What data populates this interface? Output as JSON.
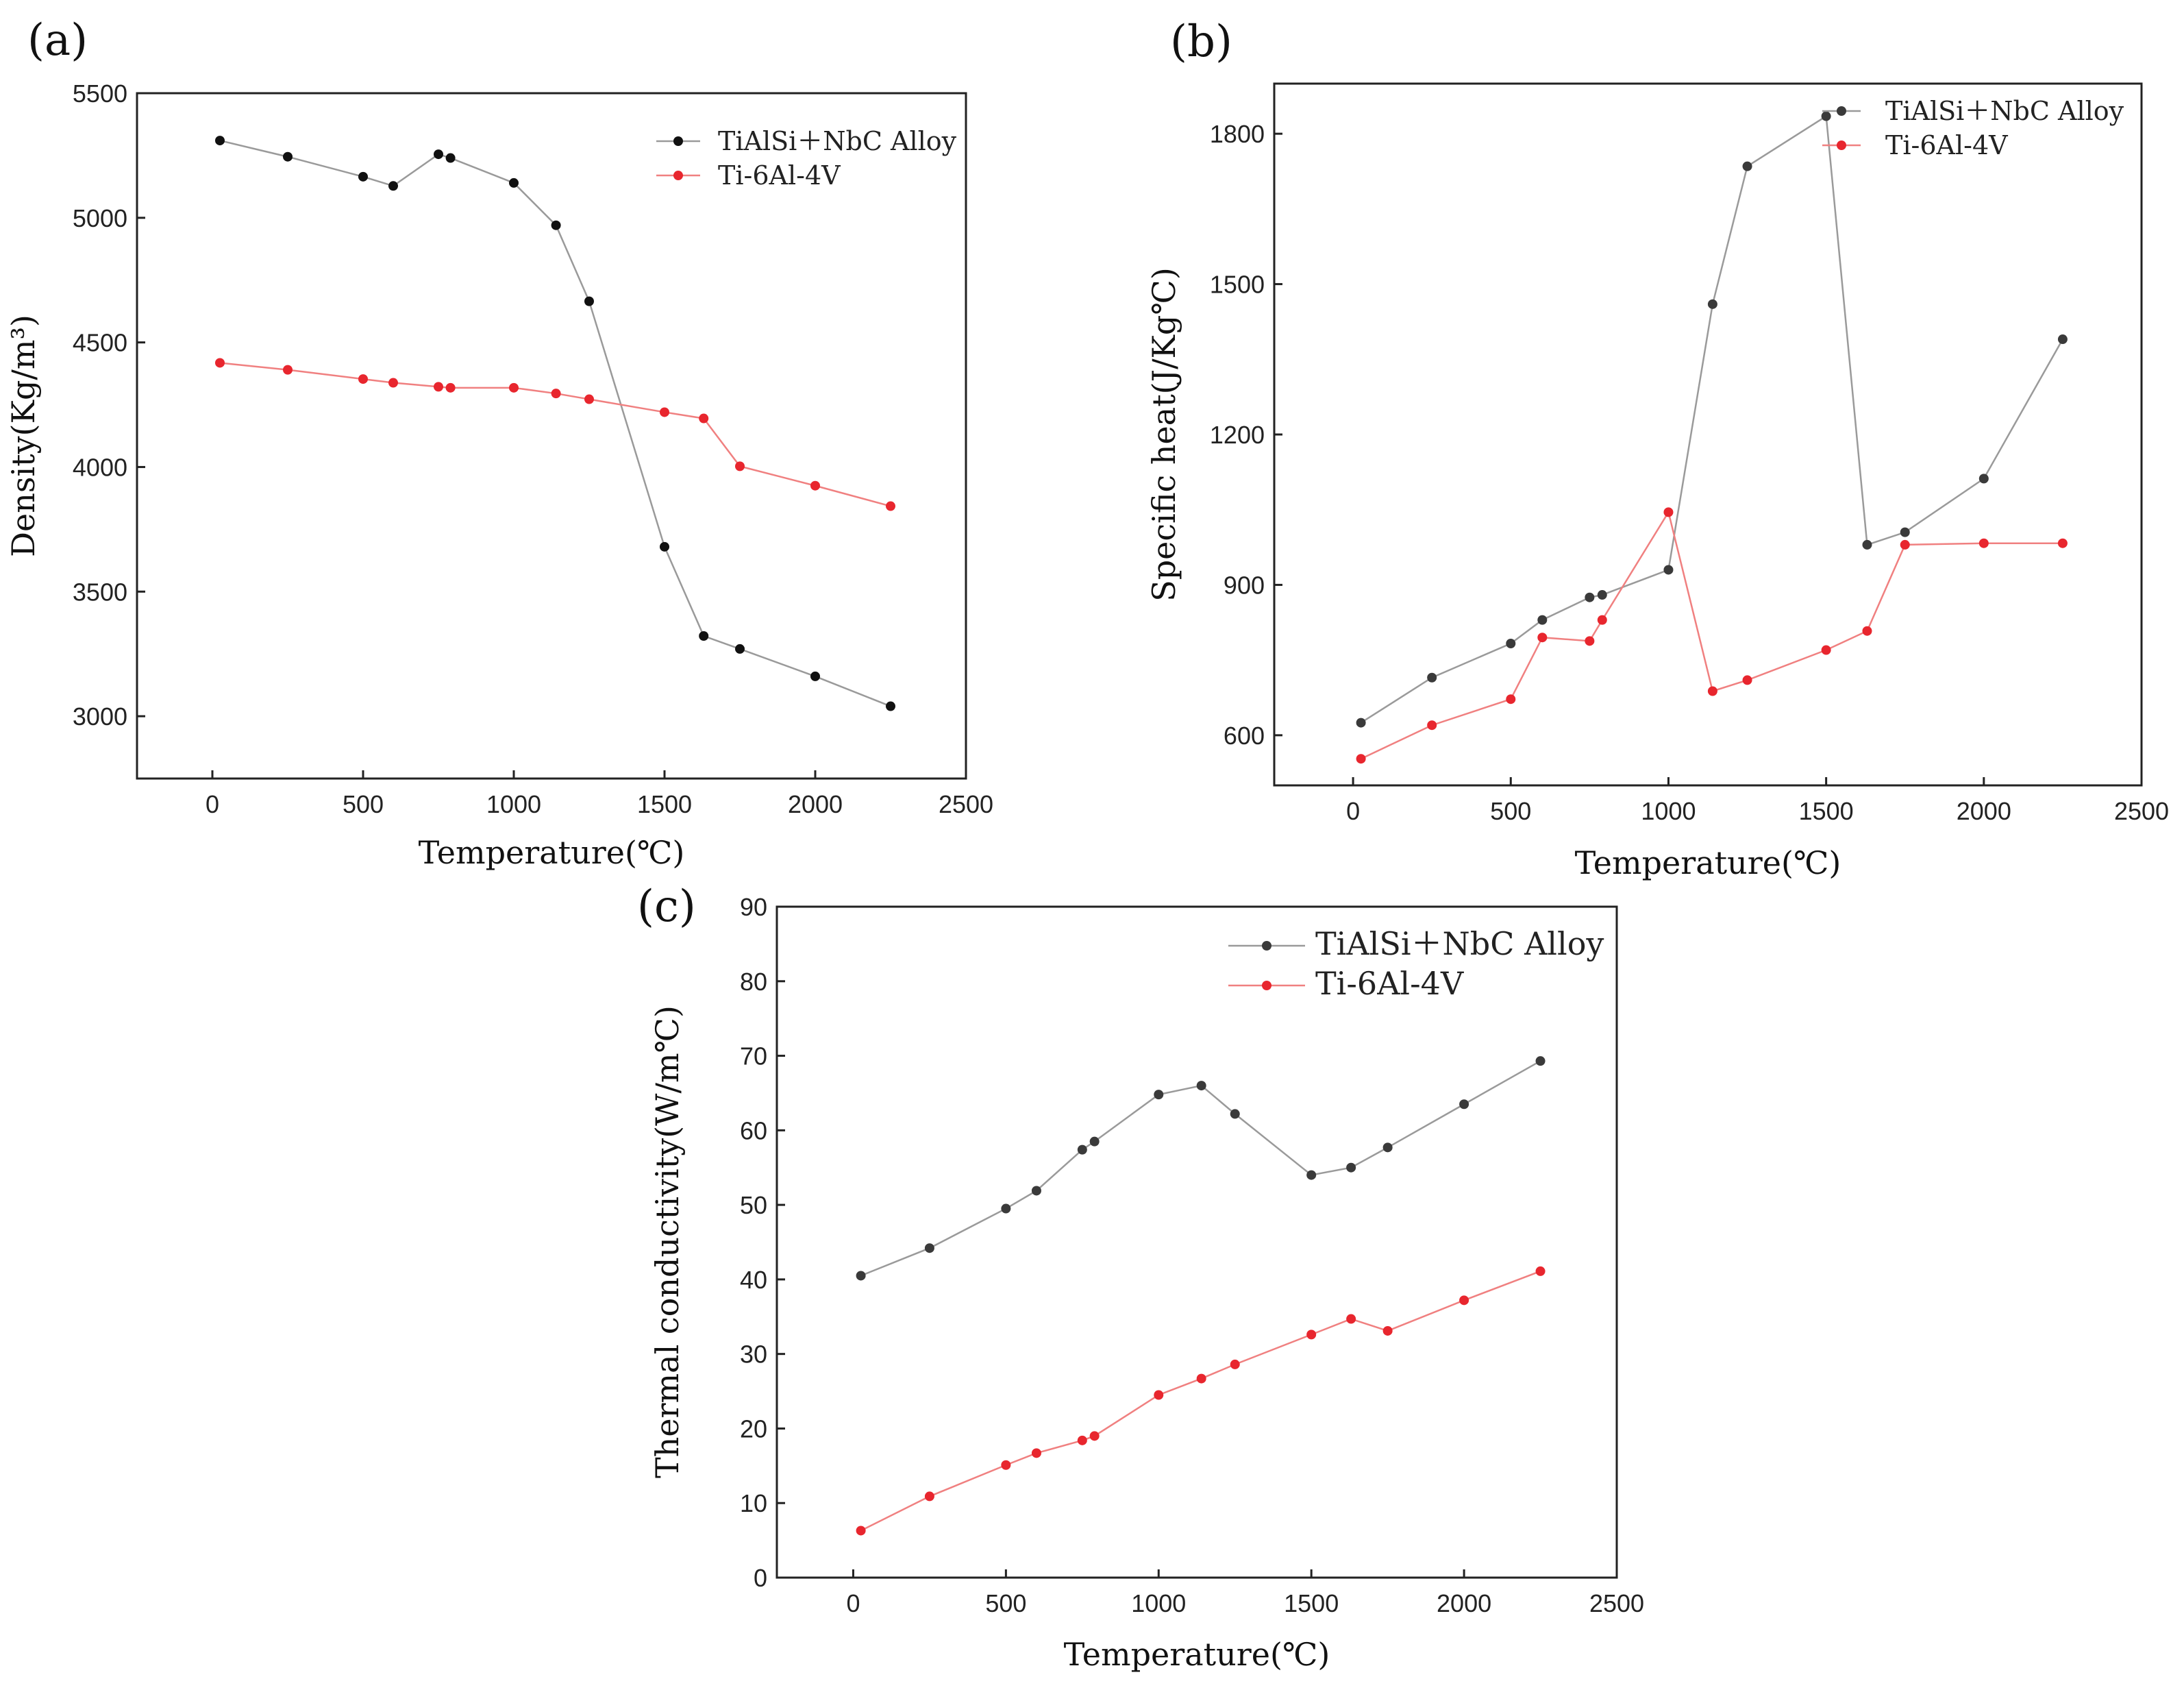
{
  "chart_data": [
    {
      "type": "line",
      "panel_label": "(a)",
      "xlabel": "Temperature(℃)",
      "ylabel": "Density(Kg/m³)",
      "xlim": [
        -250,
        2500
      ],
      "ylim": [
        2750,
        5500
      ],
      "xticks": [
        0,
        500,
        1000,
        1500,
        2000,
        2500
      ],
      "yticks": [
        3000,
        3500,
        4000,
        4500,
        5000,
        5500
      ],
      "xtick_labels": [
        "0",
        "500",
        "1000",
        "1500",
        "2000",
        "2500"
      ],
      "ytick_labels": [
        "3000",
        "3500",
        "4000",
        "4500",
        "5000",
        "5500"
      ],
      "legend_position": "top-right",
      "grid": false,
      "series": [
        {
          "name": "TiAlSi＋NbC Alloy",
          "color": "#111111",
          "line_color": "#9a9a9a",
          "x": [
            25,
            250,
            500,
            600,
            750,
            790,
            1000,
            1140,
            1250,
            1500,
            1630,
            1750,
            2000,
            2250
          ],
          "y": [
            5310,
            5245,
            5165,
            5128,
            5255,
            5240,
            5140,
            4970,
            4665,
            3680,
            3322,
            3270,
            3160,
            3040
          ]
        },
        {
          "name": "Ti-6Al-4V",
          "color": "#e8262e",
          "line_color": "#f08080",
          "x": [
            25,
            250,
            500,
            600,
            750,
            790,
            1000,
            1140,
            1250,
            1500,
            1630,
            1750,
            2000,
            2250
          ],
          "y": [
            4418,
            4390,
            4353,
            4338,
            4322,
            4318,
            4318,
            4295,
            4272,
            4220,
            4195,
            4003,
            3925,
            3843
          ]
        }
      ]
    },
    {
      "type": "line",
      "panel_label": "(b)",
      "xlabel": "Temperature(℃)",
      "ylabel": "Specific heat(J/Kg℃)",
      "xlim": [
        -250,
        2500
      ],
      "ylim": [
        500,
        1900
      ],
      "xticks": [
        0,
        500,
        1000,
        1500,
        2000,
        2500
      ],
      "yticks": [
        600,
        900,
        1200,
        1500,
        1800
      ],
      "xtick_labels": [
        "0",
        "500",
        "1000",
        "1500",
        "2000",
        "2500"
      ],
      "ytick_labels": [
        "600",
        "900",
        "1200",
        "1500",
        "1800"
      ],
      "legend_position": "top-right",
      "grid": false,
      "series": [
        {
          "name": "TiAlSi＋NbC Alloy",
          "color": "#3a3a3a",
          "line_color": "#9a9a9a",
          "x": [
            25,
            250,
            500,
            600,
            750,
            790,
            1000,
            1140,
            1250,
            1500,
            1630,
            1750,
            2000,
            2250
          ],
          "y": [
            625,
            715,
            783,
            830,
            875,
            880,
            930,
            1460,
            1735,
            1835,
            980,
            1005,
            1112,
            1390
          ]
        },
        {
          "name": "Ti-6Al-4V",
          "color": "#e8262e",
          "line_color": "#f08080",
          "x": [
            25,
            250,
            500,
            600,
            750,
            790,
            1000,
            1140,
            1250,
            1500,
            1630,
            1750,
            2000,
            2250
          ],
          "y": [
            553,
            620,
            672,
            795,
            788,
            830,
            1045,
            688,
            710,
            770,
            808,
            980,
            983,
            983
          ]
        }
      ]
    },
    {
      "type": "line",
      "panel_label": "(c)",
      "xlabel": "Temperature(℃)",
      "ylabel": "Thermal conductivity(W/m℃)",
      "xlim": [
        -250,
        2500
      ],
      "ylim": [
        0,
        90
      ],
      "xticks": [
        0,
        500,
        1000,
        1500,
        2000,
        2500
      ],
      "yticks": [
        0,
        10,
        20,
        30,
        40,
        50,
        60,
        70,
        80,
        90
      ],
      "xtick_labels": [
        "0",
        "500",
        "1000",
        "1500",
        "2000",
        "2500"
      ],
      "ytick_labels": [
        "0",
        "10",
        "20",
        "30",
        "40",
        "50",
        "60",
        "70",
        "80",
        "90"
      ],
      "legend_position": "top-right",
      "grid": false,
      "series": [
        {
          "name": "TiAlSi＋NbC Alloy",
          "color": "#3a3a3a",
          "line_color": "#9a9a9a",
          "x": [
            25,
            250,
            500,
            600,
            750,
            790,
            1000,
            1140,
            1250,
            1500,
            1630,
            1750,
            2000,
            2250
          ],
          "y": [
            40.5,
            44.2,
            49.5,
            51.9,
            57.4,
            58.5,
            64.8,
            66.0,
            62.2,
            54.0,
            55.0,
            57.7,
            63.5,
            69.3
          ]
        },
        {
          "name": "Ti-6Al-4V",
          "color": "#e8262e",
          "line_color": "#f08080",
          "x": [
            25,
            250,
            500,
            600,
            750,
            790,
            1000,
            1140,
            1250,
            1500,
            1630,
            1750,
            2000,
            2250
          ],
          "y": [
            6.3,
            10.9,
            15.1,
            16.7,
            18.4,
            19.0,
            24.5,
            26.7,
            28.6,
            32.6,
            34.7,
            33.1,
            37.2,
            41.1
          ]
        }
      ]
    }
  ]
}
